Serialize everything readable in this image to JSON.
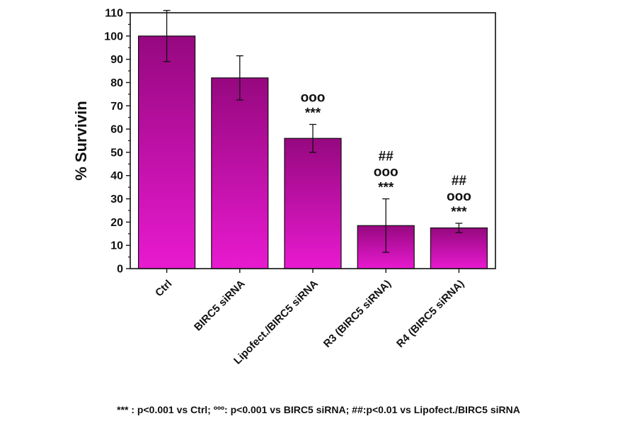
{
  "chart_data": {
    "type": "bar",
    "title": "",
    "xlabel": "",
    "ylabel": "% Survivin",
    "ylim": [
      0,
      110
    ],
    "yticks": [
      0,
      10,
      20,
      30,
      40,
      50,
      60,
      70,
      80,
      90,
      100,
      110
    ],
    "grid": false,
    "categories": [
      "Ctrl",
      "BIRC5 siRNA",
      "Lipofect./BIRC5 siRNA",
      "R3 (BIRC5 siRNA)",
      "R4 (BIRC5 siRNA)"
    ],
    "values": [
      100,
      82,
      56,
      18.5,
      17.5
    ],
    "error": [
      11,
      9.5,
      6,
      11.5,
      2
    ],
    "bar_color_top": "#96087f",
    "bar_color_bottom": "#e81ad0",
    "annotations": [
      [],
      [],
      [
        "ooo",
        "***"
      ],
      [
        "##",
        "ooo",
        "***"
      ],
      [
        "##",
        "ooo",
        "***"
      ]
    ]
  },
  "footnote": "*** : p<0.001 vs Ctrl; ººº: p<0.001 vs BIRC5 siRNA; ##:p<0.01 vs Lipofect./BIRC5 siRNA"
}
